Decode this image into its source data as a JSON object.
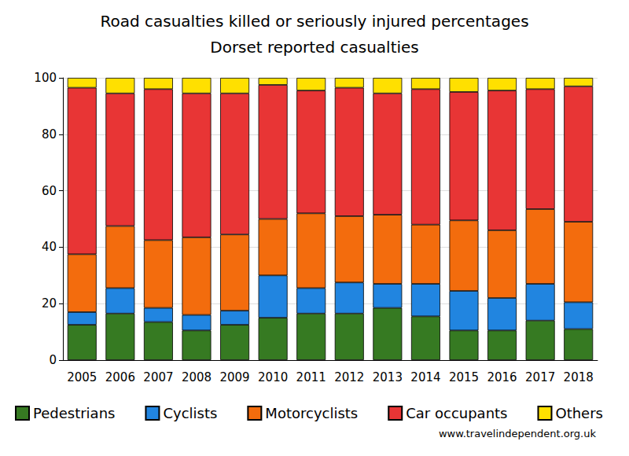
{
  "chart_data": {
    "type": "bar",
    "title": "Road casualties killed or seriously injured percentages",
    "subtitle": "Dorset reported casualties",
    "annotations": [
      "www.travelindependent.org.uk"
    ],
    "categories": [
      "2005",
      "2006",
      "2007",
      "2008",
      "2009",
      "2010",
      "2011",
      "2012",
      "2013",
      "2014",
      "2015",
      "2016",
      "2017",
      "2018"
    ],
    "series": [
      {
        "name": "Pedestrians",
        "color": "#367a22",
        "values": [
          12.5,
          16.5,
          13.5,
          10.5,
          12.5,
          15,
          16.5,
          16.5,
          18.5,
          15.5,
          10.5,
          10.5,
          14,
          11
        ]
      },
      {
        "name": "Cyclists",
        "color": "#2185e0",
        "values": [
          4.5,
          9,
          5,
          5.5,
          5,
          15,
          9,
          11,
          8.5,
          11.5,
          14,
          11.5,
          13,
          9.5
        ]
      },
      {
        "name": "Motorcyclists",
        "color": "#f36c0d",
        "values": [
          20.5,
          22,
          24,
          27.5,
          27,
          20,
          26.5,
          23.5,
          24.5,
          21,
          25,
          24,
          26.5,
          28.5
        ]
      },
      {
        "name": "Car occupants",
        "color": "#e83535",
        "values": [
          59,
          47,
          53.5,
          51,
          50,
          47.5,
          43.5,
          45.5,
          43,
          48,
          45.5,
          49.5,
          42.5,
          48
        ]
      },
      {
        "name": "Others",
        "color": "#ffe000",
        "values": [
          3.5,
          5.5,
          4,
          5.5,
          5.5,
          2.5,
          4.5,
          3.5,
          5.5,
          4,
          5,
          4.5,
          4,
          3
        ]
      }
    ],
    "ylim": [
      0,
      100
    ],
    "yticks": [
      0,
      20,
      40,
      60,
      80,
      100
    ],
    "stacked": true,
    "grid": true,
    "legend": "bottom"
  }
}
